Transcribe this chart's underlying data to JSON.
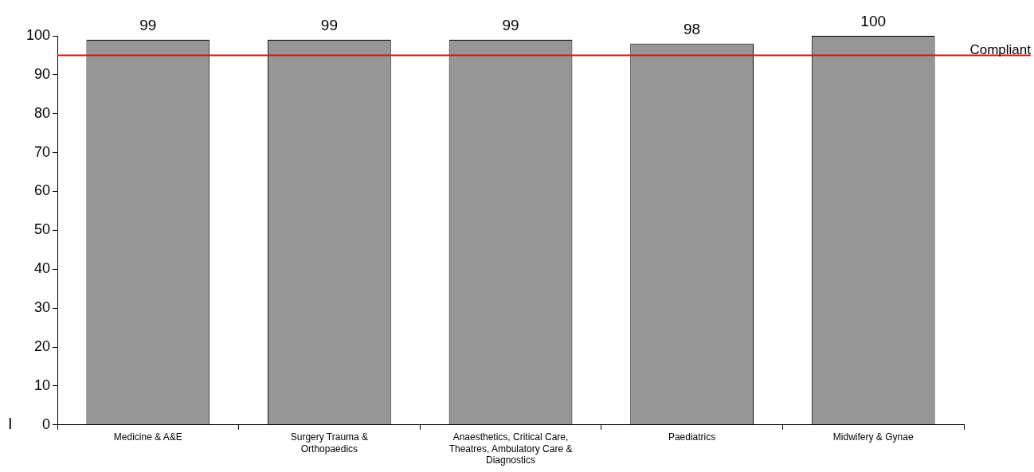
{
  "chart_data": {
    "type": "bar",
    "categories": [
      "Medicine & A&E",
      "Surgery Trauma & Orthopaedics",
      "Anaesthetics, Critical Care, Theatres, Ambulatory Care & Diagnostics",
      "Paediatrics",
      "Midwifery & Gynae"
    ],
    "values": [
      99,
      99,
      99,
      98,
      100
    ],
    "color": "#969696",
    "data_labels": true,
    "ylim": [
      0,
      100
    ],
    "yticks": [
      0,
      10,
      20,
      30,
      40,
      50,
      60,
      70,
      80,
      90,
      100
    ],
    "ref_lines": [
      {
        "axis": "y",
        "value": 95,
        "label": "Compliant",
        "color": "#ff0000"
      }
    ],
    "annotations": [
      "I"
    ],
    "legend": false
  }
}
